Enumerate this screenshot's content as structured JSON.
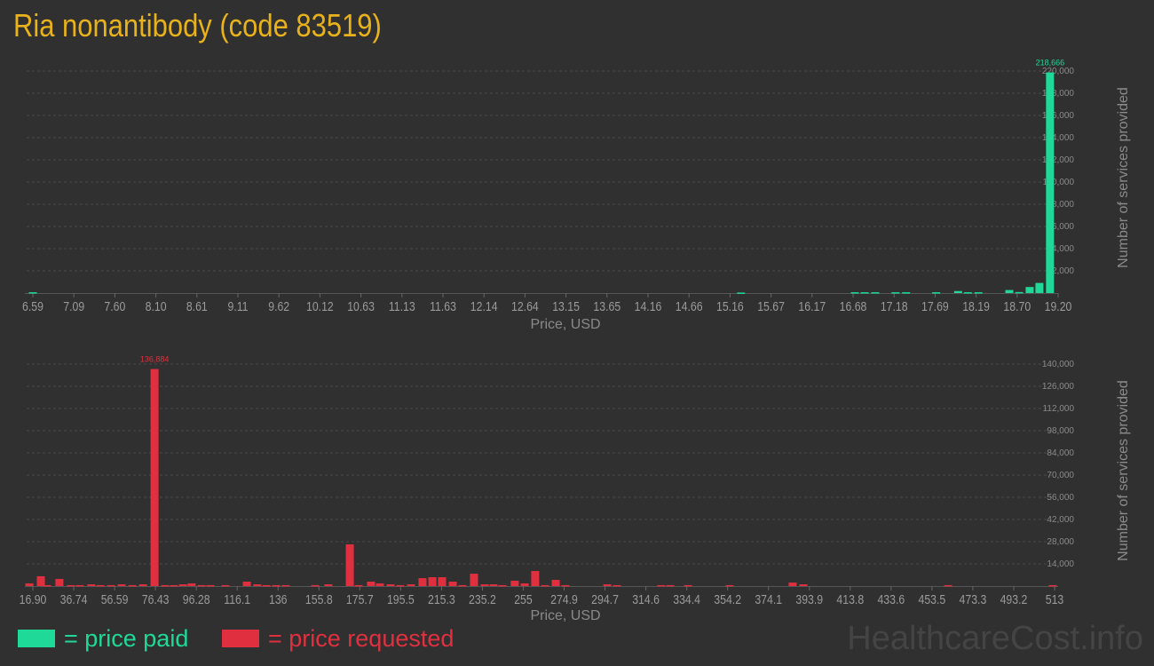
{
  "title": "Ria nonantibody (code 83519)",
  "colors": {
    "paid": "#1ed998",
    "requested": "#e03040",
    "title": "#e8b21c"
  },
  "legend": {
    "paid": "= price paid",
    "requested": "= price requested"
  },
  "brand": "HealthcareCost.info",
  "chart_data": [
    {
      "type": "bar",
      "xlabel": "Price, USD",
      "ylabel": "Number of services provided",
      "xlim": [
        6.59,
        19.2
      ],
      "ylim": [
        0,
        220000
      ],
      "grid": true,
      "x_ticks": [
        "6.59",
        "7.09",
        "7.60",
        "8.10",
        "8.61",
        "9.11",
        "9.62",
        "10.12",
        "10.63",
        "11.13",
        "11.63",
        "12.14",
        "12.64",
        "13.15",
        "13.65",
        "14.16",
        "14.66",
        "15.16",
        "15.67",
        "16.17",
        "16.68",
        "17.18",
        "17.69",
        "18.19",
        "18.70",
        "19.20"
      ],
      "y_ticks": [
        "22,000",
        "44,000",
        "66,000",
        "88,000",
        "110,000",
        "132,000",
        "154,000",
        "176,000",
        "198,000",
        "220,000"
      ],
      "peak_label": "218,666",
      "x": [
        6.59,
        15.3,
        16.7,
        16.82,
        16.95,
        17.2,
        17.33,
        17.7,
        17.97,
        18.09,
        18.22,
        18.6,
        18.72,
        18.85,
        18.97,
        19.1
      ],
      "values": [
        800,
        500,
        800,
        800,
        800,
        800,
        800,
        800,
        2000,
        800,
        800,
        3000,
        1000,
        6000,
        10000,
        218666
      ]
    },
    {
      "type": "bar",
      "xlabel": "Price, USD",
      "ylabel": "Number of services provided",
      "xlim": [
        16.9,
        513
      ],
      "ylim": [
        0,
        140000
      ],
      "grid": true,
      "x_ticks": [
        "16.90",
        "36.74",
        "56.59",
        "76.43",
        "96.28",
        "116.1",
        "136",
        "155.8",
        "175.7",
        "195.5",
        "215.3",
        "235.2",
        "255",
        "274.9",
        "294.7",
        "314.6",
        "334.4",
        "354.2",
        "374.1",
        "393.9",
        "413.8",
        "433.6",
        "453.5",
        "473.3",
        "493.2",
        "513"
      ],
      "y_ticks": [
        "14,000",
        "28,000",
        "42,000",
        "56,000",
        "70,000",
        "84,000",
        "98,000",
        "112,000",
        "126,000",
        "140,000"
      ],
      "peak_label": "136,884",
      "x": [
        15.2,
        20.8,
        23.8,
        29.8,
        35.4,
        39.7,
        45.3,
        49.7,
        54.8,
        60.0,
        65.2,
        70.4,
        76.0,
        81.1,
        85.4,
        89.8,
        94.0,
        98.8,
        103.1,
        110.4,
        120.8,
        125.9,
        130.3,
        135.0,
        139.7,
        154.0,
        160.4,
        170.8,
        175.1,
        181.1,
        185.4,
        190.6,
        195.3,
        200.5,
        206.1,
        210.9,
        215.6,
        220.8,
        225.5,
        231.1,
        236.3,
        240.6,
        244.9,
        250.9,
        255.7,
        260.8,
        265.6,
        270.8,
        275.5,
        295.8,
        300.5,
        322.0,
        326.4,
        335.0,
        355.2,
        385.8,
        391.0,
        461.3,
        512.1
      ],
      "values": [
        1700,
        6200,
        600,
        4500,
        600,
        600,
        1100,
        600,
        600,
        1100,
        600,
        1100,
        136884,
        600,
        600,
        1100,
        1700,
        600,
        600,
        600,
        2800,
        1100,
        600,
        600,
        600,
        600,
        1100,
        26300,
        600,
        2800,
        1700,
        1100,
        600,
        1100,
        5000,
        5600,
        5600,
        2800,
        600,
        7800,
        1100,
        1100,
        600,
        3400,
        1700,
        9500,
        600,
        3900,
        600,
        1100,
        600,
        600,
        600,
        600,
        600,
        2200,
        1100,
        600,
        600
      ]
    }
  ]
}
